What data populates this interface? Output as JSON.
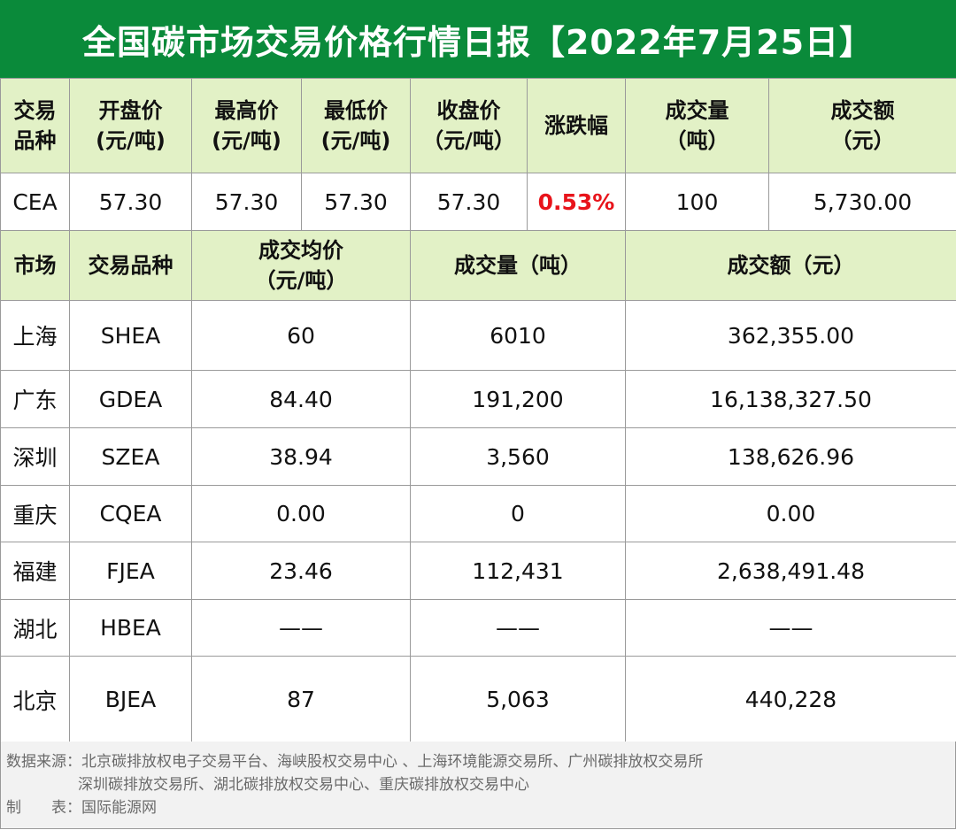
{
  "title": "全国碳市场交易价格行情日报【2022年7月25日】",
  "national": {
    "headers": [
      [
        "交易",
        "品种"
      ],
      [
        "开盘价",
        "(元/吨)"
      ],
      [
        "最高价",
        "(元/吨)"
      ],
      [
        "最低价",
        "(元/吨)"
      ],
      [
        "收盘价",
        "（元/吨）"
      ],
      [
        "涨跌幅"
      ],
      [
        "成交量",
        "（吨）"
      ],
      [
        "成交额",
        "（元）"
      ]
    ],
    "row": {
      "product": "CEA",
      "open": "57.30",
      "high": "57.30",
      "low": "57.30",
      "close": "57.30",
      "change": "0.53%",
      "volume": "100",
      "amount": "5,730.00"
    }
  },
  "regional": {
    "headers": {
      "market": "市场",
      "product": "交易品种",
      "avg_price_1": "成交均价",
      "avg_price_2": "（元/吨）",
      "volume": "成交量（吨）",
      "amount": "成交额（元）"
    },
    "rows": [
      {
        "market": "上海",
        "product": "SHEA",
        "avg": "60",
        "volume": "6010",
        "amount": "362,355.00"
      },
      {
        "market": "广东",
        "product": "GDEA",
        "avg": "84.40",
        "volume": "191,200",
        "amount": "16,138,327.50"
      },
      {
        "market": "深圳",
        "product": "SZEA",
        "avg": "38.94",
        "volume": "3,560",
        "amount": "138,626.96"
      },
      {
        "market": "重庆",
        "product": "CQEA",
        "avg": "0.00",
        "volume": "0",
        "amount": "0.00"
      },
      {
        "market": "福建",
        "product": "FJEA",
        "avg": "23.46",
        "volume": "112,431",
        "amount": "2,638,491.48"
      },
      {
        "market": "湖北",
        "product": "HBEA",
        "avg": "——",
        "volume": "——",
        "amount": "——"
      },
      {
        "market": "北京",
        "product": "BJEA",
        "avg": "87",
        "volume": "5,063",
        "amount": "440,228"
      }
    ]
  },
  "footer": {
    "source_line1": "数据来源：北京碳排放权电子交易平台、海峡股权交易中心 、上海环境能源交易所、广州碳排放权交易所",
    "source_line2": "深圳碳排放交易所、湖北碳排放权交易中心、重庆碳排放权交易中心",
    "maker_label_1": "制",
    "maker_label_2": "表：",
    "maker": "国际能源网"
  },
  "colors": {
    "title_bg": "#0a8a3a",
    "header_bg": "#e2f1c6",
    "positive": "#e8141b",
    "footer_bg": "#f2f2f2"
  }
}
